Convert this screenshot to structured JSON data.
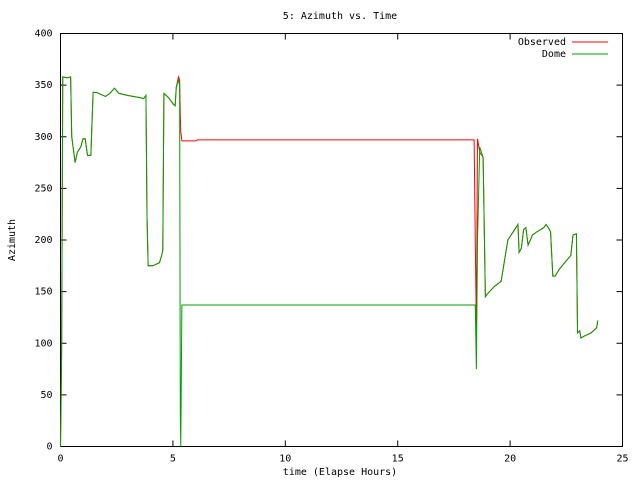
{
  "chart_data": {
    "type": "line",
    "title": "5: Azimuth vs. Time",
    "x_label": "time (Elapse Hours)",
    "y_label": "Azimuth",
    "x": [
      0,
      0.05,
      0.1,
      0.3,
      0.45,
      0.5,
      0.65,
      0.75,
      0.9,
      1.0,
      1.1,
      1.2,
      1.35,
      1.45,
      1.6,
      1.8,
      2.0,
      2.2,
      2.4,
      2.6,
      3.0,
      3.5,
      3.7,
      3.8,
      3.85,
      3.9,
      4.1,
      4.4,
      4.5,
      4.55,
      4.6,
      4.8,
      5.0,
      5.1,
      5.15,
      5.25,
      5.3,
      5.33,
      5.35,
      5.4,
      6.0,
      6.1,
      18.4,
      18.45,
      18.5,
      18.55,
      18.65,
      18.8,
      18.9,
      19.0,
      19.3,
      19.6,
      19.9,
      20.2,
      20.35,
      20.4,
      20.5,
      20.6,
      20.7,
      20.8,
      20.9,
      21.0,
      21.2,
      21.5,
      21.6,
      21.7,
      21.8,
      21.9,
      22.0,
      22.2,
      22.5,
      22.7,
      22.8,
      22.95,
      23.0,
      23.1,
      23.15,
      23.3,
      23.6,
      23.85,
      23.9
    ],
    "series": [
      {
        "name": "Observed",
        "color": "#ff0000",
        "values": [
          0,
          90,
          358,
          357,
          358,
          300,
          275,
          285,
          290,
          298,
          298,
          282,
          282,
          343,
          343,
          341,
          339,
          342,
          347,
          342,
          340,
          338,
          337,
          340,
          220,
          175,
          175,
          178,
          185,
          190,
          342,
          338,
          332,
          330,
          348,
          358,
          355,
          320,
          305,
          296,
          296,
          297,
          297,
          200,
          115,
          298,
          285,
          280,
          145,
          148,
          155,
          160,
          200,
          210,
          215,
          188,
          192,
          210,
          212,
          195,
          200,
          205,
          208,
          212,
          215,
          212,
          208,
          165,
          165,
          172,
          180,
          185,
          205,
          206,
          110,
          112,
          105,
          107,
          110,
          115,
          122
        ]
      },
      {
        "name": "Dome",
        "color": "#00a000",
        "values": [
          0,
          90,
          358,
          357,
          358,
          300,
          275,
          285,
          290,
          298,
          298,
          282,
          282,
          343,
          343,
          341,
          339,
          342,
          347,
          342,
          340,
          338,
          337,
          340,
          220,
          175,
          175,
          178,
          185,
          190,
          342,
          338,
          332,
          330,
          348,
          355,
          350,
          30,
          0,
          137,
          137,
          137,
          137,
          137,
          75,
          200,
          290,
          280,
          145,
          148,
          155,
          160,
          200,
          210,
          215,
          188,
          192,
          210,
          212,
          195,
          200,
          205,
          208,
          212,
          215,
          212,
          208,
          165,
          165,
          172,
          180,
          185,
          205,
          206,
          110,
          112,
          105,
          107,
          110,
          115,
          122
        ]
      }
    ],
    "xlim": [
      0,
      25
    ],
    "xticks": [
      0,
      5,
      10,
      15,
      20,
      25
    ],
    "ylim": [
      0,
      400
    ],
    "yticks": [
      0,
      50,
      100,
      150,
      200,
      250,
      300,
      350,
      400
    ],
    "grid": false,
    "legend": "top-right"
  }
}
